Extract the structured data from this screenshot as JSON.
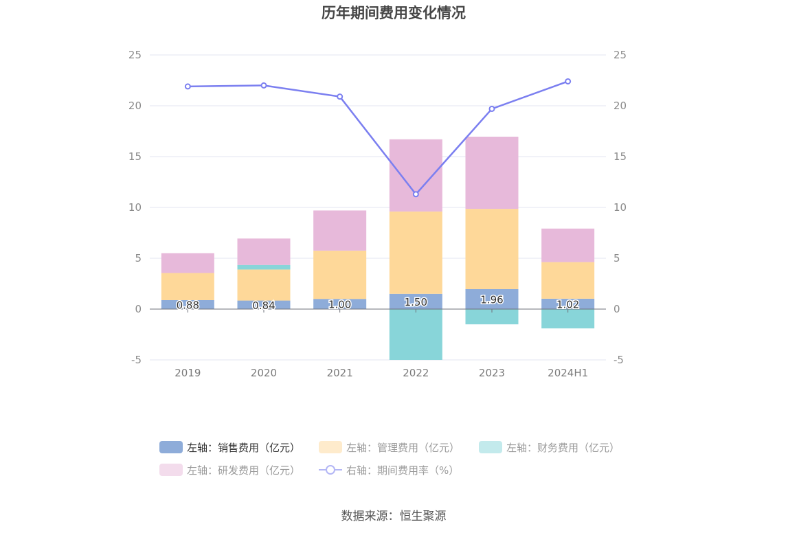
{
  "chart_title": "历年期间费用变化情况",
  "source": "数据来源：恒生聚源",
  "colors": {
    "sales": "#8eacd9",
    "admin": "#fed899",
    "finance": "#88d5d9",
    "rd": "#e7b9da",
    "rate": "#7b7ff0"
  },
  "chart_data": {
    "type": "bar",
    "stacked": true,
    "categories": [
      "2019",
      "2020",
      "2021",
      "2022",
      "2023",
      "2024H1"
    ],
    "left_axis": {
      "ylim": [
        -5,
        25
      ],
      "ticks": [
        "-5",
        "0",
        "5",
        "10",
        "15",
        "20",
        "25"
      ]
    },
    "right_axis": {
      "ylim": [
        -5,
        25
      ],
      "ticks": [
        "-5",
        "0",
        "5",
        "10",
        "15",
        "20",
        "25"
      ]
    },
    "grid": true,
    "legend_position": "bottom",
    "series": [
      {
        "key": "sales",
        "name": "左轴：销售费用（亿元）",
        "axis": "left",
        "type": "bar",
        "values": [
          0.88,
          0.84,
          1.0,
          1.5,
          1.96,
          1.02
        ],
        "labels": [
          "0.88",
          "0.84",
          "1.00",
          "1.50",
          "1.96",
          "1.02"
        ]
      },
      {
        "key": "admin",
        "name": "左轴：管理费用（亿元）",
        "axis": "left",
        "type": "bar",
        "values": [
          2.67,
          3.05,
          4.75,
          8.1,
          7.9,
          3.6
        ]
      },
      {
        "key": "finance",
        "name": "左轴：财务费用（亿元）",
        "axis": "left",
        "type": "bar",
        "values": [
          0.0,
          0.45,
          0.0,
          -5.0,
          -1.5,
          -1.9
        ]
      },
      {
        "key": "rd",
        "name": "左轴：研发费用（亿元）",
        "axis": "left",
        "type": "bar",
        "values": [
          1.95,
          2.6,
          3.95,
          7.1,
          7.1,
          3.3
        ]
      },
      {
        "key": "rate",
        "name": "右轴：期间费用率（%）",
        "axis": "right",
        "type": "line",
        "values": [
          21.9,
          22.0,
          20.9,
          11.3,
          19.7,
          22.4
        ]
      }
    ]
  }
}
